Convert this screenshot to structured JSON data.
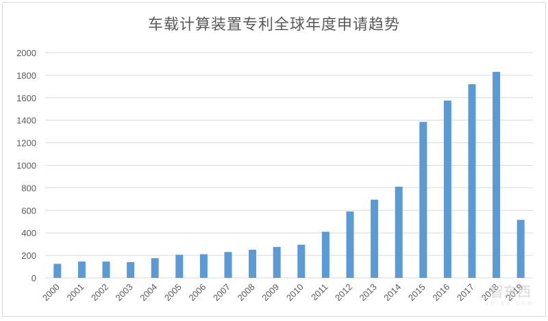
{
  "chart_data": {
    "type": "bar",
    "title": "车载计算装置专利全球年度申请趋势",
    "xlabel": "",
    "ylabel": "",
    "categories": [
      "2000",
      "2001",
      "2002",
      "2003",
      "2004",
      "2005",
      "2006",
      "2007",
      "2008",
      "2009",
      "2010",
      "2011",
      "2012",
      "2013",
      "2014",
      "2015",
      "2016",
      "2017",
      "2018",
      "2019"
    ],
    "values": [
      125,
      145,
      145,
      140,
      175,
      205,
      210,
      230,
      250,
      275,
      295,
      410,
      590,
      695,
      810,
      1385,
      1575,
      1720,
      1830,
      515
    ],
    "ylim": [
      0,
      2000
    ],
    "yticks": [
      0,
      200,
      400,
      600,
      800,
      1000,
      1200,
      1400,
      1600,
      1800,
      2000
    ],
    "grid": true,
    "legend": "none",
    "bar_color": "#5b9bd5"
  },
  "watermark": {
    "text": "智东西",
    "sub": "zhidx.com"
  }
}
